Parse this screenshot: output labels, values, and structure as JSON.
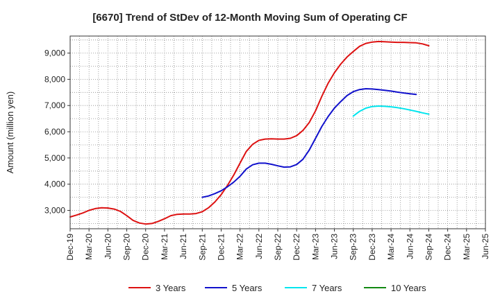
{
  "chart_data": {
    "type": "line",
    "title": "[6670]  Trend of StDev of 12-Month Moving Sum of Operating CF",
    "xlabel": "",
    "ylabel": "Amount (million yen)",
    "ylim": [
      2300,
      9650
    ],
    "yticks": [
      3000,
      4000,
      5000,
      6000,
      7000,
      8000,
      9000
    ],
    "ytick_labels": [
      "3,000",
      "4,000",
      "5,000",
      "6,000",
      "7,000",
      "8,000",
      "9,000"
    ],
    "x_range_months": [
      0,
      66
    ],
    "xticks": [
      {
        "m": 0,
        "label": "Dec-19"
      },
      {
        "m": 3,
        "label": "Mar-20"
      },
      {
        "m": 6,
        "label": "Jun-20"
      },
      {
        "m": 9,
        "label": "Sep-20"
      },
      {
        "m": 12,
        "label": "Dec-20"
      },
      {
        "m": 15,
        "label": "Mar-21"
      },
      {
        "m": 18,
        "label": "Jun-21"
      },
      {
        "m": 21,
        "label": "Sep-21"
      },
      {
        "m": 24,
        "label": "Dec-21"
      },
      {
        "m": 27,
        "label": "Mar-22"
      },
      {
        "m": 30,
        "label": "Jun-22"
      },
      {
        "m": 33,
        "label": "Sep-22"
      },
      {
        "m": 36,
        "label": "Dec-22"
      },
      {
        "m": 39,
        "label": "Mar-23"
      },
      {
        "m": 42,
        "label": "Jun-23"
      },
      {
        "m": 45,
        "label": "Sep-23"
      },
      {
        "m": 48,
        "label": "Dec-23"
      },
      {
        "m": 51,
        "label": "Mar-24"
      },
      {
        "m": 54,
        "label": "Jun-24"
      },
      {
        "m": 57,
        "label": "Sep-24"
      },
      {
        "m": 60,
        "label": "Dec-24"
      },
      {
        "m": 63,
        "label": "Mar-25"
      },
      {
        "m": 66,
        "label": "Jun-25"
      }
    ],
    "grid": true,
    "legend_position": "bottom",
    "series": [
      {
        "name": "3 Years",
        "color": "#dd1111",
        "start_month": 0,
        "values": [
          2750,
          2820,
          2900,
          3000,
          3070,
          3100,
          3090,
          3050,
          2960,
          2800,
          2620,
          2520,
          2480,
          2500,
          2580,
          2680,
          2800,
          2850,
          2860,
          2860,
          2880,
          2950,
          3100,
          3320,
          3600,
          3950,
          4350,
          4800,
          5250,
          5520,
          5670,
          5720,
          5730,
          5720,
          5720,
          5750,
          5850,
          6050,
          6350,
          6800,
          7350,
          7850,
          8250,
          8580,
          8850,
          9060,
          9260,
          9370,
          9420,
          9440,
          9430,
          9420,
          9410,
          9410,
          9400,
          9390,
          9350,
          9280
        ]
      },
      {
        "name": "5 Years",
        "color": "#1111cc",
        "start_month": 21,
        "values": [
          3500,
          3550,
          3640,
          3750,
          3900,
          4080,
          4300,
          4580,
          4740,
          4800,
          4800,
          4760,
          4700,
          4650,
          4660,
          4750,
          4950,
          5300,
          5750,
          6200,
          6580,
          6900,
          7150,
          7380,
          7530,
          7610,
          7640,
          7630,
          7610,
          7580,
          7550,
          7510,
          7480,
          7450,
          7420
        ]
      },
      {
        "name": "7 Years",
        "color": "#00e5ee",
        "start_month": 45,
        "values": [
          6600,
          6780,
          6900,
          6960,
          6980,
          6970,
          6950,
          6920,
          6880,
          6830,
          6780,
          6720,
          6670
        ]
      },
      {
        "name": "10 Years",
        "color": "#118811",
        "start_month": 0,
        "values": []
      }
    ]
  }
}
